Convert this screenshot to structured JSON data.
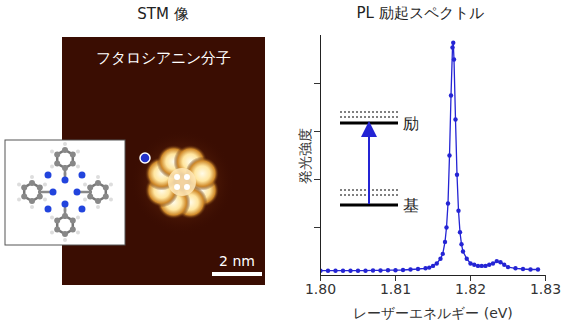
{
  "chart_data": {
    "type": "line",
    "title": "PL 励起スペクトル",
    "x_label": "レーザーエネルギー (eV)",
    "y_label": "発光強度",
    "x": [
      1.8,
      1.801,
      1.802,
      1.803,
      1.804,
      1.805,
      1.806,
      1.807,
      1.808,
      1.809,
      1.81,
      1.811,
      1.812,
      1.813,
      1.814,
      1.8145,
      1.815,
      1.8155,
      1.816,
      1.8163,
      1.8166,
      1.8168,
      1.817,
      1.8172,
      1.8174,
      1.8176,
      1.8177,
      1.8178,
      1.818,
      1.8182,
      1.8184,
      1.8186,
      1.8188,
      1.819,
      1.8195,
      1.82,
      1.8205,
      1.821,
      1.8215,
      1.822,
      1.8225,
      1.823,
      1.8235,
      1.824,
      1.8245,
      1.825,
      1.826,
      1.827,
      1.828,
      1.829
    ],
    "series": [
      {
        "name": "PL",
        "color": "#2424d4",
        "marker": "circle",
        "line_style": "solid",
        "values": [
          0.02,
          0.02,
          0.02,
          0.02,
          0.02,
          0.02,
          0.02,
          0.021,
          0.021,
          0.022,
          0.022,
          0.023,
          0.025,
          0.027,
          0.03,
          0.033,
          0.04,
          0.05,
          0.07,
          0.09,
          0.14,
          0.2,
          0.3,
          0.5,
          0.75,
          0.95,
          0.97,
          0.9,
          0.65,
          0.42,
          0.27,
          0.18,
          0.13,
          0.1,
          0.07,
          0.05,
          0.045,
          0.04,
          0.04,
          0.04,
          0.045,
          0.05,
          0.06,
          0.055,
          0.045,
          0.035,
          0.03,
          0.027,
          0.025,
          0.025
        ]
      }
    ],
    "xlim": [
      1.8,
      1.83
    ],
    "xticks": [
      {
        "value": 1.8,
        "label": "1.80"
      },
      {
        "value": 1.81,
        "label": "1.81"
      },
      {
        "value": 1.82,
        "label": "1.82"
      },
      {
        "value": 1.83,
        "label": "1.83"
      }
    ],
    "ylim": [
      0,
      1
    ],
    "yticks": [
      0.2,
      0.4,
      0.6,
      0.8
    ],
    "tick_labels": "x",
    "grid": false,
    "annotations": {
      "excited": "励",
      "ground": "基"
    }
  },
  "stm_panel": {
    "title": "STM 像",
    "label": "フタロシアニン分子",
    "scale_bar": "2 nm"
  }
}
